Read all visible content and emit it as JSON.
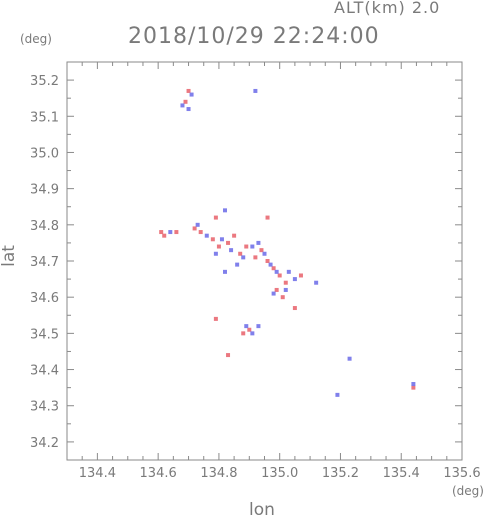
{
  "header": {
    "altitude_label": "ALT(km) 2.0",
    "timestamp": "2018/10/29 22:24:00"
  },
  "chart_data": {
    "type": "scatter",
    "title": "2018/10/29 22:24:00",
    "subtitle": "ALT(km) 2.0",
    "xlabel": "lon",
    "ylabel": "lat",
    "xunit": "(deg)",
    "yunit": "(deg)",
    "xlim": [
      134.3,
      135.6
    ],
    "ylim": [
      34.15,
      35.25
    ],
    "xticks": [
      134.4,
      134.6,
      134.8,
      135.0,
      135.2,
      135.4,
      135.6
    ],
    "xtick_labels": [
      "134.4",
      "134.6",
      "134.8",
      "135.0",
      "135.2",
      "135.4",
      "135.6"
    ],
    "yticks": [
      34.2,
      34.3,
      34.4,
      34.5,
      34.6,
      34.7,
      34.8,
      34.9,
      35.0,
      35.1,
      35.2
    ],
    "ytick_labels": [
      "34.2",
      "34.3",
      "34.4",
      "34.5",
      "34.6",
      "34.7",
      "34.8",
      "34.9",
      "35.0",
      "35.1",
      "35.2"
    ],
    "grid": false,
    "colors": {
      "red": "#e8606a",
      "blue": "#6a6ae8",
      "frame": "#8a8a8a"
    },
    "series": [
      {
        "color": "red",
        "points": [
          [
            134.7,
            35.17
          ],
          [
            134.69,
            35.14
          ],
          [
            134.61,
            34.78
          ],
          [
            134.62,
            34.77
          ],
          [
            134.66,
            34.78
          ],
          [
            134.72,
            34.79
          ],
          [
            134.74,
            34.78
          ],
          [
            134.78,
            34.76
          ],
          [
            134.8,
            34.74
          ],
          [
            134.83,
            34.75
          ],
          [
            134.85,
            34.77
          ],
          [
            134.87,
            34.72
          ],
          [
            134.89,
            34.74
          ],
          [
            134.92,
            34.71
          ],
          [
            134.94,
            34.73
          ],
          [
            134.96,
            34.7
          ],
          [
            134.98,
            34.68
          ],
          [
            135.0,
            34.66
          ],
          [
            135.02,
            34.64
          ],
          [
            134.99,
            34.62
          ],
          [
            135.01,
            34.6
          ],
          [
            135.05,
            34.57
          ],
          [
            135.07,
            34.66
          ],
          [
            134.79,
            34.54
          ],
          [
            134.88,
            34.5
          ],
          [
            134.9,
            34.51
          ],
          [
            134.83,
            34.44
          ],
          [
            134.79,
            34.82
          ],
          [
            134.96,
            34.82
          ],
          [
            135.44,
            34.35
          ]
        ]
      },
      {
        "color": "blue",
        "points": [
          [
            134.68,
            35.13
          ],
          [
            134.7,
            35.12
          ],
          [
            134.71,
            35.16
          ],
          [
            134.92,
            35.17
          ],
          [
            134.64,
            34.78
          ],
          [
            134.73,
            34.8
          ],
          [
            134.76,
            34.77
          ],
          [
            134.79,
            34.72
          ],
          [
            134.81,
            34.76
          ],
          [
            134.84,
            34.73
          ],
          [
            134.86,
            34.69
          ],
          [
            134.88,
            34.71
          ],
          [
            134.91,
            34.74
          ],
          [
            134.93,
            34.75
          ],
          [
            134.95,
            34.72
          ],
          [
            134.97,
            34.69
          ],
          [
            134.99,
            34.67
          ],
          [
            135.03,
            34.67
          ],
          [
            135.05,
            34.65
          ],
          [
            135.12,
            34.64
          ],
          [
            134.98,
            34.61
          ],
          [
            135.02,
            34.62
          ],
          [
            134.89,
            34.52
          ],
          [
            134.91,
            34.5
          ],
          [
            134.93,
            34.52
          ],
          [
            134.82,
            34.84
          ],
          [
            134.82,
            34.67
          ],
          [
            135.23,
            34.43
          ],
          [
            135.19,
            34.33
          ],
          [
            135.44,
            34.36
          ]
        ]
      }
    ]
  }
}
